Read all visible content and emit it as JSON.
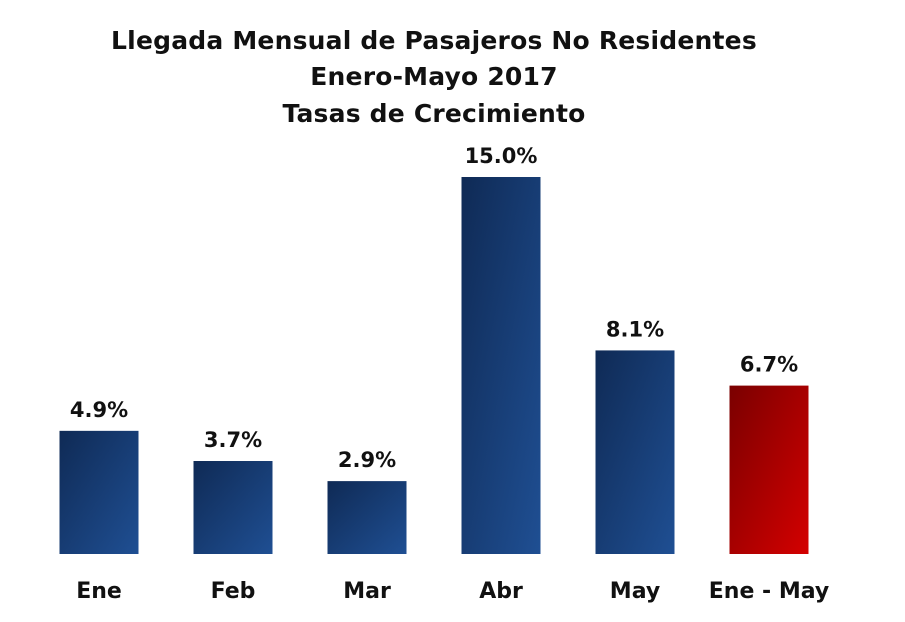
{
  "chart_data": {
    "type": "bar",
    "title": [
      "Llegada Mensual de Pasajeros No Residentes",
      "Enero-Mayo 2017",
      "Tasas de Crecimiento"
    ],
    "categories": [
      "Ene",
      "Feb",
      "Mar",
      "Abr",
      "May",
      "Ene - May"
    ],
    "values": [
      4.9,
      3.7,
      2.9,
      15.0,
      8.1,
      6.7
    ],
    "value_labels": [
      "4.9%",
      "3.7%",
      "2.9%",
      "15.0%",
      "8.1%",
      "6.7%"
    ],
    "unit": "%",
    "ylim": [
      0,
      15.0
    ],
    "grid": false,
    "colors": {
      "monthly_bar_dark": "#0f2a55",
      "monthly_bar_light": "#1f4f93",
      "total_bar_dark": "#7a0000",
      "total_bar_light": "#d40000"
    },
    "highlight_index": 5
  }
}
